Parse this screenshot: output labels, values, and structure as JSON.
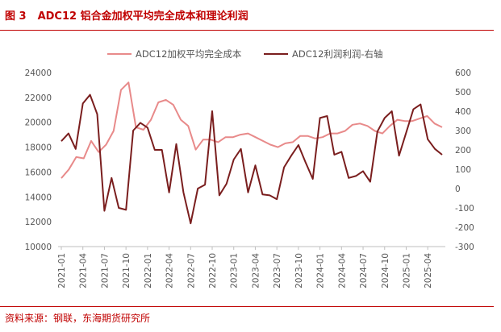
{
  "figure": {
    "label": "图 3",
    "title": "ADC12 铝合金加权平均完全成本和理论利润",
    "source": "资料来源：钢联，东海期货研究所"
  },
  "chart_data": {
    "type": "line",
    "legend_position": "top",
    "grid": true,
    "x_tick_labels": [
      "2021-01",
      "2021-04",
      "2021-07",
      "2021-10",
      "2022-01",
      "2022-04",
      "2022-07",
      "2022-10",
      "2023-01",
      "2023-04",
      "2023-07",
      "2023-10",
      "2024-01",
      "2024-04",
      "2024-07",
      "2024-10",
      "2025-01",
      "2025-04"
    ],
    "y_left": {
      "min": 10000,
      "max": 24000,
      "step": 2000,
      "ticks": [
        "10000",
        "12000",
        "14000",
        "16000",
        "18000",
        "20000",
        "22000",
        "24000"
      ]
    },
    "y_right": {
      "min": -300,
      "max": 600,
      "step": 100,
      "ticks": [
        "-300",
        "-200",
        "-100",
        "0",
        "100",
        "200",
        "300",
        "400",
        "500",
        "600"
      ]
    },
    "series": [
      {
        "name": "ADC12加权平均完全成本",
        "axis": "left",
        "color": "#e88a8a",
        "values": [
          15500,
          16200,
          17200,
          17100,
          18500,
          17600,
          18200,
          19300,
          22600,
          23200,
          19600,
          19400,
          20200,
          21600,
          21800,
          21400,
          20200,
          19700,
          17800,
          18600,
          18600,
          18400,
          18800,
          18800,
          19000,
          19100,
          18800,
          18500,
          18200,
          18000,
          18300,
          18400,
          18900,
          18900,
          18700,
          18800,
          19100,
          19100,
          19300,
          19800,
          19900,
          19700,
          19300,
          19100,
          19700,
          20200,
          20100,
          20100,
          20300,
          20500,
          19900,
          19600
        ]
      },
      {
        "name": "ADC12利润利润-右轴",
        "axis": "right",
        "color": "#7a1e1e",
        "values": [
          245,
          285,
          205,
          440,
          485,
          385,
          -115,
          55,
          -100,
          -110,
          300,
          340,
          315,
          200,
          200,
          -20,
          230,
          -20,
          -180,
          0,
          20,
          400,
          -35,
          25,
          150,
          205,
          -20,
          120,
          -30,
          -35,
          -55,
          110,
          170,
          225,
          135,
          50,
          365,
          375,
          175,
          190,
          55,
          65,
          90,
          35,
          295,
          365,
          400,
          170,
          290,
          410,
          435,
          255,
          205,
          175
        ]
      }
    ]
  }
}
